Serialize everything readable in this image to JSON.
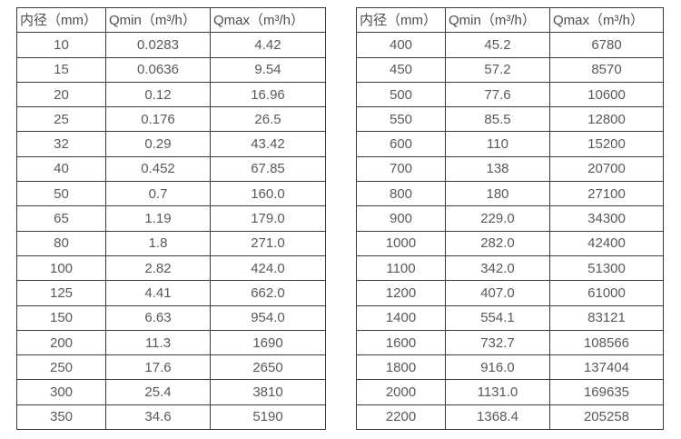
{
  "style": {
    "background": "#ffffff",
    "border_color": "#3b3b3b",
    "header_text_color": "#4d4d4d",
    "cell_text_color": "#595959"
  },
  "tables": [
    {
      "name": "flow-rate-table-small-diameters",
      "headers": [
        "内径（mm）",
        "Qmin（m³/h）",
        "Qmax（m³/h）"
      ],
      "rows": [
        [
          "10",
          "0.0283",
          "4.42"
        ],
        [
          "15",
          "0.0636",
          "9.54"
        ],
        [
          "20",
          "0.12",
          "16.96"
        ],
        [
          "25",
          "0.176",
          "26.5"
        ],
        [
          "32",
          "0.29",
          "43.42"
        ],
        [
          "40",
          "0.452",
          "67.85"
        ],
        [
          "50",
          "0.7",
          "160.0"
        ],
        [
          "65",
          "1.19",
          "179.0"
        ],
        [
          "80",
          "1.8",
          "271.0"
        ],
        [
          "100",
          "2.82",
          "424.0"
        ],
        [
          "125",
          "4.41",
          "662.0"
        ],
        [
          "150",
          "6.63",
          "954.0"
        ],
        [
          "200",
          "11.3",
          "1690"
        ],
        [
          "250",
          "17.6",
          "2650"
        ],
        [
          "300",
          "25.4",
          "3810"
        ],
        [
          "350",
          "34.6",
          "5190"
        ]
      ]
    },
    {
      "name": "flow-rate-table-large-diameters",
      "headers": [
        "内径（mm）",
        "Qmin（m³/h）",
        "Qmax（m³/h）"
      ],
      "rows": [
        [
          "400",
          "45.2",
          "6780"
        ],
        [
          "450",
          "57.2",
          "8570"
        ],
        [
          "500",
          "77.6",
          "10600"
        ],
        [
          "550",
          "85.5",
          "12800"
        ],
        [
          "600",
          "110",
          "15200"
        ],
        [
          "700",
          "138",
          "20700"
        ],
        [
          "800",
          "180",
          "27100"
        ],
        [
          "900",
          "229.0",
          "34300"
        ],
        [
          "1000",
          "282.0",
          "42400"
        ],
        [
          "1100",
          "342.0",
          "51300"
        ],
        [
          "1200",
          "407.0",
          "61000"
        ],
        [
          "1400",
          "554.1",
          "83121"
        ],
        [
          "1600",
          "732.7",
          "108566"
        ],
        [
          "1800",
          "916.0",
          "137404"
        ],
        [
          "2000",
          "1131.0",
          "169635"
        ],
        [
          "2200",
          "1368.4",
          "205258"
        ]
      ]
    }
  ]
}
